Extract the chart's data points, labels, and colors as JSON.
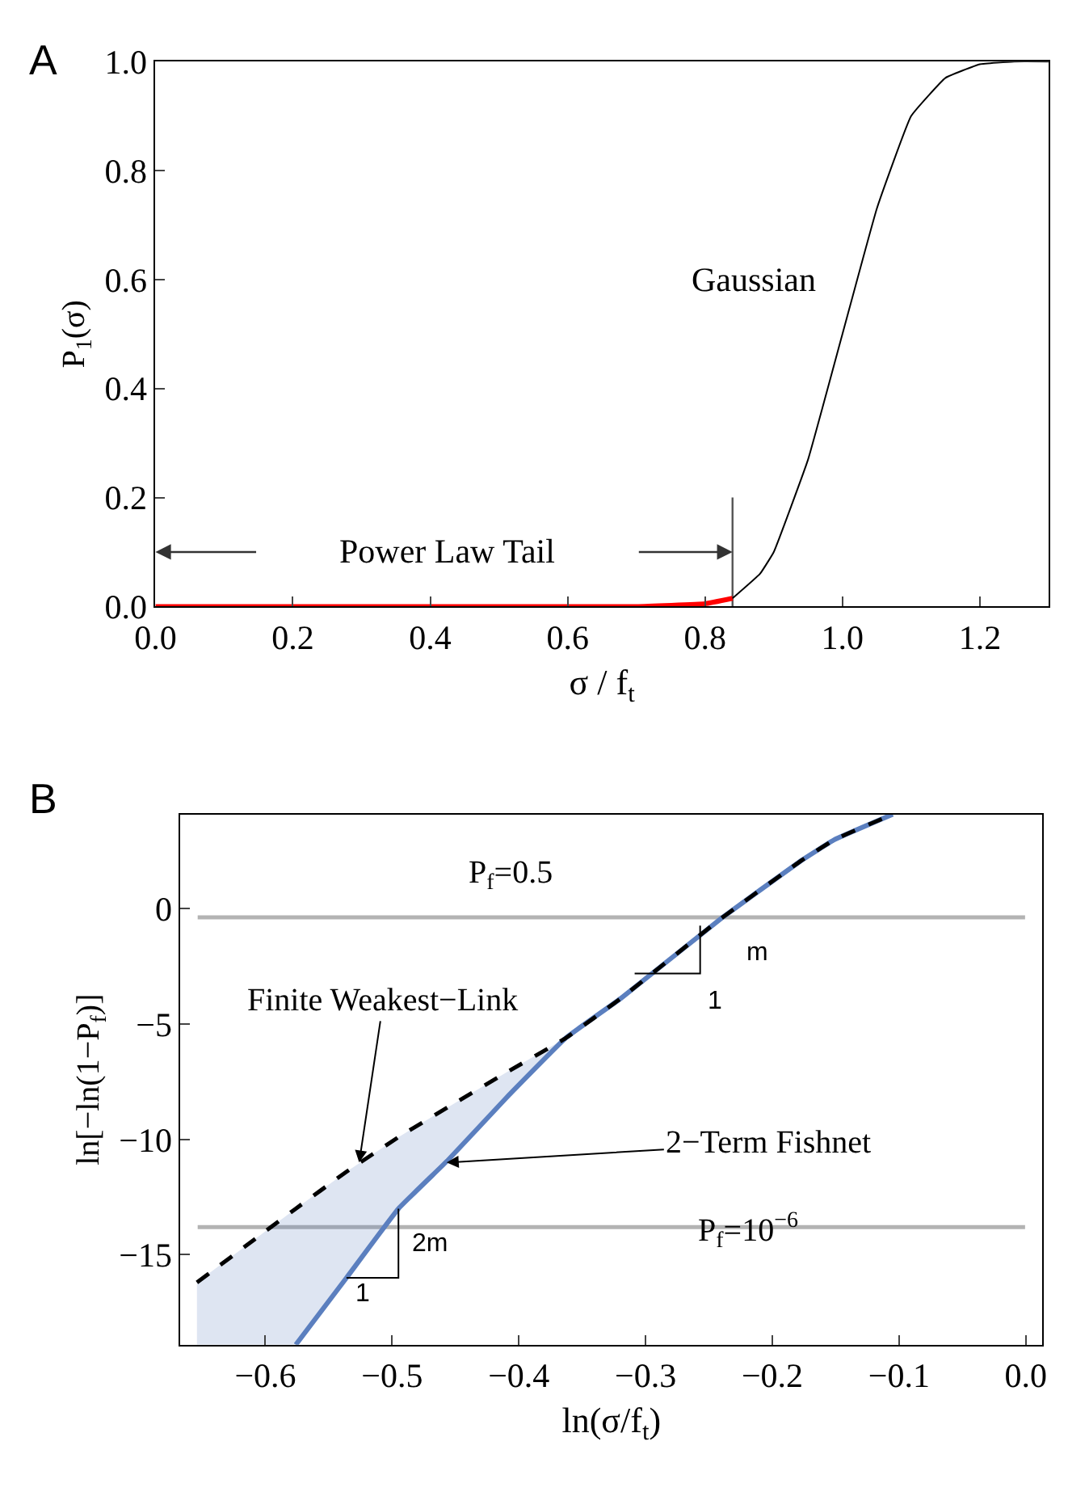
{
  "chart_data": [
    {
      "type": "line",
      "title": "A",
      "xlabel": "σ / f$_{t}$",
      "ylabel": "P$_{1}$(σ)",
      "xlim": [
        0,
        1.3
      ],
      "ylim": [
        0,
        1.0
      ],
      "xticks": [
        {
          "value": 0,
          "label": "0.0"
        },
        {
          "value": 0.2,
          "label": "0.2"
        },
        {
          "value": 0.4,
          "label": "0.4"
        },
        {
          "value": 0.6,
          "label": "0.6"
        },
        {
          "value": 0.8,
          "label": "0.8"
        },
        {
          "value": 1.0,
          "label": "1.0"
        },
        {
          "value": 1.2,
          "label": "1.2"
        }
      ],
      "yticks": [
        {
          "value": 0,
          "label": "0.0"
        },
        {
          "value": 0.2,
          "label": "0.2"
        },
        {
          "value": 0.4,
          "label": "0.4"
        },
        {
          "value": 0.6,
          "label": "0.6"
        },
        {
          "value": 0.8,
          "label": "0.8"
        },
        {
          "value": 1.0,
          "label": "1.0"
        }
      ],
      "series": [
        {
          "color": "#ff0000",
          "x": [
            0,
            0.2,
            0.4,
            0.6,
            0.7,
            0.8,
            0.84
          ],
          "values": [
            0,
            0,
            0,
            0,
            0,
            0.005,
            0.015
          ]
        },
        {
          "color": "#000000",
          "x": [
            0.84,
            0.88,
            0.9,
            0.95,
            1.0,
            1.05,
            1.1,
            1.15,
            1.2,
            1.25,
            1.3
          ],
          "values": [
            0.015,
            0.06,
            0.1,
            0.27,
            0.5,
            0.73,
            0.9,
            0.97,
            0.995,
            1.0,
            1.0
          ]
        }
      ],
      "ref_lines": [
        {
          "axis": "x",
          "value": 0.84,
          "color": "#555555"
        }
      ],
      "annotations": [
        "Gaussian",
        "Power Law Tail"
      ],
      "grid": false,
      "marker": "none",
      "line_style": "solid"
    },
    {
      "type": "line",
      "title": "B",
      "xlabel": "ln(σ/f$_{t}$)",
      "ylabel": "ln[−ln(1−P$_{f}$)]",
      "xlim": [
        -0.667,
        0.013
      ],
      "ylim": [
        -18.9,
        4.1
      ],
      "xticks": [
        {
          "value": -0.6,
          "label": "−0.6"
        },
        {
          "value": -0.5,
          "label": "−0.5"
        },
        {
          "value": -0.4,
          "label": "−0.4"
        },
        {
          "value": -0.3,
          "label": "−0.3"
        },
        {
          "value": -0.2,
          "label": "−0.2"
        },
        {
          "value": -0.1,
          "label": "−0.1"
        },
        {
          "value": 0,
          "label": "0.0"
        }
      ],
      "yticks": [
        {
          "value": 0,
          "label": "0"
        },
        {
          "value": -5,
          "label": "−5"
        },
        {
          "value": -10,
          "label": "−10"
        },
        {
          "value": -15,
          "label": "−15"
        }
      ],
      "series": [
        {
          "color": "#5b7fbf",
          "line_style": "solid",
          "x": [
            -0.576,
            -0.536,
            -0.495,
            -0.456,
            -0.41,
            -0.363,
            -0.32,
            -0.24,
            -0.177,
            -0.151,
            -0.105
          ],
          "values": [
            -18.9,
            -16.0,
            -13.0,
            -10.9,
            -8.2,
            -5.6,
            -3.9,
            -0.4,
            2.1,
            3.0,
            4.1
          ]
        },
        {
          "color": "#000000",
          "line_style": "dashed",
          "x": [
            -0.654,
            -0.576,
            -0.536,
            -0.495,
            -0.456,
            -0.41,
            -0.363,
            -0.32,
            -0.24,
            -0.177,
            -0.151,
            -0.105
          ],
          "values": [
            -16.2,
            -13.0,
            -11.4,
            -9.9,
            -8.6,
            -7.1,
            -5.6,
            -3.9,
            -0.4,
            2.1,
            3.0,
            4.1
          ],
          "lower": [
            -18.9,
            -18.9,
            -16.0,
            -13.0,
            -10.9,
            -8.2,
            -5.6,
            -3.9,
            -0.4,
            2.1,
            3.0,
            4.1
          ],
          "upper": [
            -16.2,
            -13.0,
            -11.4,
            -9.9,
            -8.6,
            -7.1,
            -5.6,
            -3.9,
            -0.4,
            2.1,
            3.0,
            4.1
          ]
        }
      ],
      "ref_lines": [
        {
          "axis": "y",
          "value": -0.37,
          "color": "#b3b3b3"
        },
        {
          "axis": "y",
          "value": -13.8,
          "color": "#b3b3b3"
        }
      ],
      "annotations": [
        {
          "text": "Finite Weakest−Link",
          "x": -0.526,
          "y": -11.0
        },
        {
          "text": "2−Term Fishnet",
          "x": -0.457,
          "y": -11.0
        },
        "m",
        "1",
        {
          "text": "2m",
          "x": -0.495,
          "y": -13.0
        },
        "1",
        "P$_{f}$=0.5",
        "P$_{f}$=10$^{−6}$"
      ],
      "grid": false,
      "marker": "none",
      "line_style": "solid"
    }
  ]
}
